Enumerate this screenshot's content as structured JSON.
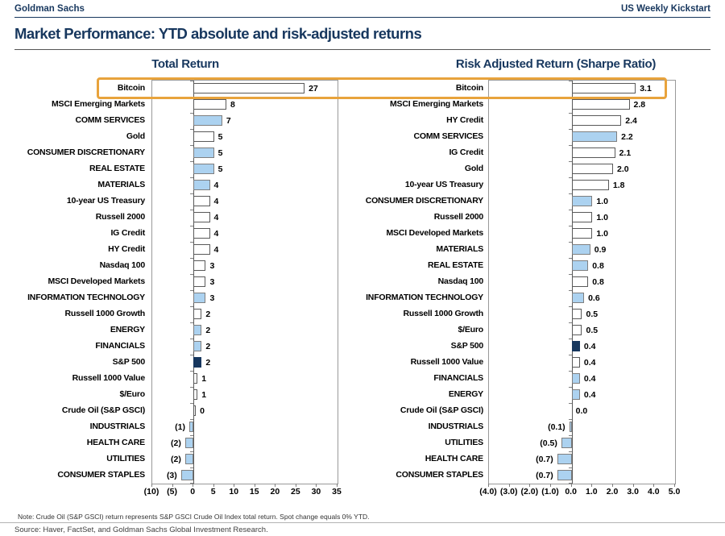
{
  "header": {
    "brand": "Goldman Sachs",
    "publication": "US Weekly Kickstart",
    "title": "Market Performance: YTD absolute and risk-adjusted returns"
  },
  "colors": {
    "text_navy": "#17375E",
    "bar_blue": "#ACD2F0",
    "bar_navy": "#17375E",
    "bar_white": "#FFFFFF",
    "highlight_orange": "#E8A33C"
  },
  "highlight": {
    "highlighted_category": "Bitcoin",
    "shape": "orange-box-around-bitcoin-rows"
  },
  "chart_data": [
    {
      "type": "bar",
      "orientation": "horizontal",
      "title": "Total Return",
      "xlim": [
        -10,
        35
      ],
      "grid": false,
      "xticks": [
        -10,
        -5,
        0,
        5,
        10,
        15,
        20,
        25,
        30,
        35
      ],
      "xtick_labels": [
        "(10)",
        "(5)",
        "0",
        "5",
        "10",
        "15",
        "20",
        "25",
        "30",
        "35"
      ],
      "categories": [
        "Bitcoin",
        "MSCI Emerging Markets",
        "COMM SERVICES",
        "Gold",
        "CONSUMER DISCRETIONARY",
        "REAL ESTATE",
        "MATERIALS",
        "10-year US Treasury",
        "Russell 2000",
        "IG Credit",
        "HY Credit",
        "Nasdaq 100",
        "MSCI Developed Markets",
        "INFORMATION TECHNOLOGY",
        "Russell 1000 Growth",
        "ENERGY",
        "FINANCIALS",
        "S&P 500",
        "Russell 1000 Value",
        "$/Euro",
        "Crude Oil (S&P GSCI)",
        "INDUSTRIALS",
        "HEALTH CARE",
        "UTILITIES",
        "CONSUMER STAPLES"
      ],
      "values": [
        27,
        8,
        7,
        5,
        5,
        5,
        4,
        4,
        4,
        4,
        4,
        3,
        3,
        3,
        2,
        2,
        2,
        2,
        1,
        1,
        0,
        -1,
        -2,
        -2,
        -3
      ],
      "value_labels": [
        "27",
        "8",
        "7",
        "5",
        "5",
        "5",
        "4",
        "4",
        "4",
        "4",
        "4",
        "3",
        "3",
        "3",
        "2",
        "2",
        "2",
        "2",
        "1",
        "1",
        "0",
        "(1)",
        "(2)",
        "(2)",
        "(3)"
      ],
      "bar_colors": [
        "white",
        "white",
        "blue",
        "white",
        "blue",
        "blue",
        "blue",
        "white",
        "white",
        "white",
        "white",
        "white",
        "white",
        "blue",
        "white",
        "blue",
        "blue",
        "navy",
        "white",
        "white",
        "white",
        "blue",
        "blue",
        "blue",
        "blue"
      ]
    },
    {
      "type": "bar",
      "orientation": "horizontal",
      "title": "Risk Adjusted Return (Sharpe Ratio)",
      "xlim": [
        -4,
        5
      ],
      "grid": false,
      "xticks": [
        -4,
        -3,
        -2,
        -1,
        0,
        1,
        2,
        3,
        4,
        5
      ],
      "xtick_labels": [
        "(4.0)",
        "(3.0)",
        "(2.0)",
        "(1.0)",
        "0.0",
        "1.0",
        "2.0",
        "3.0",
        "4.0",
        "5.0"
      ],
      "categories": [
        "Bitcoin",
        "MSCI Emerging Markets",
        "HY Credit",
        "COMM SERVICES",
        "IG Credit",
        "Gold",
        "10-year US Treasury",
        "CONSUMER DISCRETIONARY",
        "Russell 2000",
        "MSCI Developed Markets",
        "MATERIALS",
        "REAL ESTATE",
        "Nasdaq 100",
        "INFORMATION TECHNOLOGY",
        "Russell 1000 Growth",
        "$/Euro",
        "S&P 500",
        "Russell 1000 Value",
        "FINANCIALS",
        "ENERGY",
        "Crude Oil (S&P GSCI)",
        "INDUSTRIALS",
        "UTILITIES",
        "HEALTH CARE",
        "CONSUMER STAPLES"
      ],
      "values": [
        3.1,
        2.8,
        2.4,
        2.2,
        2.1,
        2.0,
        1.8,
        1.0,
        1.0,
        1.0,
        0.9,
        0.8,
        0.8,
        0.6,
        0.5,
        0.5,
        0.4,
        0.4,
        0.4,
        0.4,
        0.0,
        -0.1,
        -0.5,
        -0.7,
        -0.7
      ],
      "value_labels": [
        "3.1",
        "2.8",
        "2.4",
        "2.2",
        "2.1",
        "2.0",
        "1.8",
        "1.0",
        "1.0",
        "1.0",
        "0.9",
        "0.8",
        "0.8",
        "0.6",
        "0.5",
        "0.5",
        "0.4",
        "0.4",
        "0.4",
        "0.4",
        "0.0",
        "(0.1)",
        "(0.5)",
        "(0.7)",
        "(0.7)"
      ],
      "bar_colors": [
        "white",
        "white",
        "white",
        "blue",
        "white",
        "white",
        "white",
        "blue",
        "white",
        "white",
        "blue",
        "blue",
        "white",
        "blue",
        "white",
        "white",
        "navy",
        "white",
        "blue",
        "blue",
        "none",
        "blue",
        "blue",
        "blue",
        "blue"
      ]
    }
  ],
  "footer": {
    "note": "Note: Crude Oil (S&P GSCI) return represents S&P GSCI Crude Oil Index total return. Spot change equals 0% YTD.",
    "source": "Source: Haver, FactSet, and Goldman Sachs Global Investment Research."
  }
}
